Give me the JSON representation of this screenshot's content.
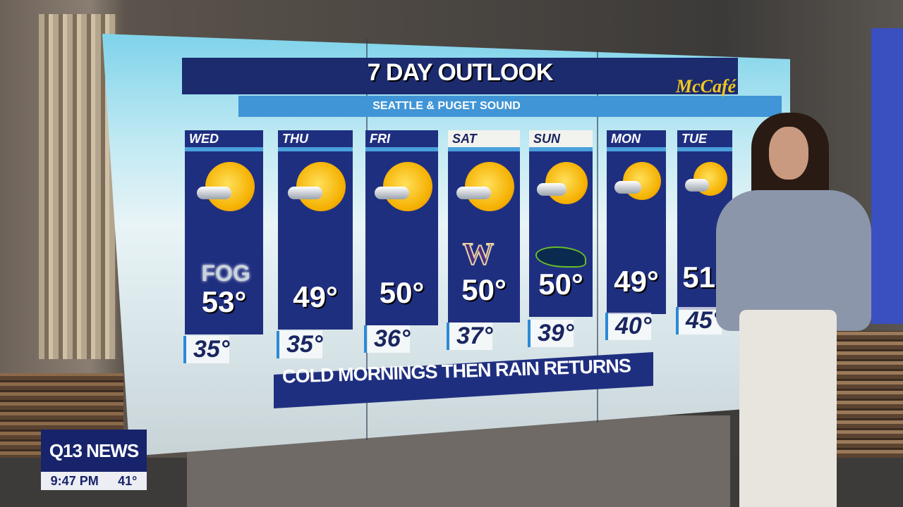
{
  "header": {
    "title": "7 DAY OUTLOOK",
    "subtitle": "SEATTLE & PUGET SOUND",
    "sponsor": "McCafé"
  },
  "days": [
    {
      "day": "WED",
      "high": "53°",
      "low": "35°",
      "icon": "sun-fog",
      "note": "FOG"
    },
    {
      "day": "THU",
      "high": "49°",
      "low": "35°",
      "icon": "mostly-cloudy"
    },
    {
      "day": "FRI",
      "high": "50°",
      "low": "36°",
      "icon": "partly-sunny"
    },
    {
      "day": "SAT",
      "high": "50°",
      "low": "37°",
      "icon": "partly-sunny-showers",
      "badge": "W"
    },
    {
      "day": "SUN",
      "high": "50°",
      "low": "39°",
      "icon": "partly-sunny",
      "badge": "seahawks-logo"
    },
    {
      "day": "MON",
      "high": "49°",
      "low": "40°",
      "icon": "cloudy-rain"
    },
    {
      "day": "TUE",
      "high": "51°",
      "low": "45°",
      "icon": "rain"
    }
  ],
  "banner": "COLD MORNINGS THEN RAIN RETURNS",
  "lower_third": {
    "brand": "Q13 NEWS",
    "time": "9:47 PM",
    "temp": "41°"
  },
  "colors": {
    "panel": "#1f2f80",
    "accent": "#3f95d6",
    "sponsor": "#f2c81f"
  }
}
